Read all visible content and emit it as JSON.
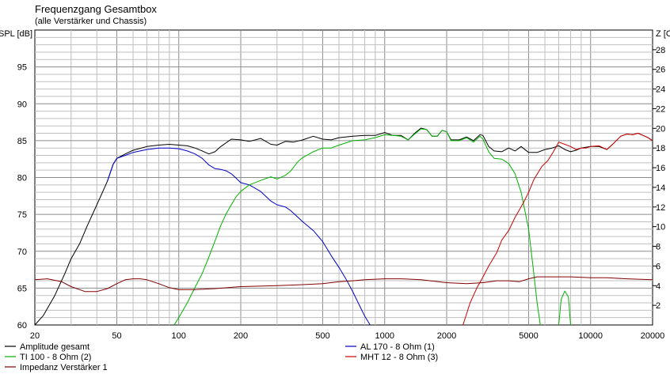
{
  "chart_data": {
    "type": "line",
    "title": "Frequenzgang Gesamtbox",
    "subtitle": "(alle Verstärker und Chassis)",
    "ylabel": "SPL [dB]",
    "y2label": "Z [Ohm]",
    "x_scale": "log",
    "xlim": [
      20,
      20000
    ],
    "ylim": [
      60,
      100
    ],
    "y2lim": [
      0,
      30
    ],
    "grid": true,
    "x_ticks": [
      {
        "v": 20,
        "label": "20"
      },
      {
        "v": 50,
        "label": "50"
      },
      {
        "v": 100,
        "label": "100"
      },
      {
        "v": 200,
        "label": "200"
      },
      {
        "v": 500,
        "label": "500"
      },
      {
        "v": 1000,
        "label": "1000"
      },
      {
        "v": 2000,
        "label": "2000"
      },
      {
        "v": 5000,
        "label": "5000"
      },
      {
        "v": 10000,
        "label": "10000"
      },
      {
        "v": 20000,
        "label": "20000"
      }
    ],
    "y_ticks": [
      {
        "v": 60,
        "label": "60"
      },
      {
        "v": 65,
        "label": "65"
      },
      {
        "v": 70,
        "label": "70"
      },
      {
        "v": 75,
        "label": "75"
      },
      {
        "v": 80,
        "label": "80"
      },
      {
        "v": 85,
        "label": "85"
      },
      {
        "v": 90,
        "label": "90"
      },
      {
        "v": 95,
        "label": "95"
      }
    ],
    "y2_ticks": [
      {
        "v": 2,
        "label": "2"
      },
      {
        "v": 4,
        "label": "4"
      },
      {
        "v": 6,
        "label": "6"
      },
      {
        "v": 8,
        "label": "8"
      },
      {
        "v": 10,
        "label": "10"
      },
      {
        "v": 12,
        "label": "12"
      },
      {
        "v": 14,
        "label": "14"
      },
      {
        "v": 16,
        "label": "16"
      },
      {
        "v": 18,
        "label": "18"
      },
      {
        "v": 20,
        "label": "20"
      },
      {
        "v": 22,
        "label": "22"
      },
      {
        "v": 24,
        "label": "24"
      },
      {
        "v": 26,
        "label": "26"
      },
      {
        "v": 28,
        "label": "28"
      }
    ],
    "legend_position": "bottom",
    "series": [
      {
        "name": "Amplitude gesamt",
        "color": "#000000",
        "axis": "spl",
        "points": [
          [
            20,
            60
          ],
          [
            22,
            61.3
          ],
          [
            25,
            64
          ],
          [
            28,
            67
          ],
          [
            30,
            69
          ],
          [
            33,
            71
          ],
          [
            36,
            73.5
          ],
          [
            40,
            76.3
          ],
          [
            45,
            79.5
          ],
          [
            48,
            81.8
          ],
          [
            50,
            82.6
          ],
          [
            55,
            83.2
          ],
          [
            60,
            83.7
          ],
          [
            70,
            84.2
          ],
          [
            80,
            84.4
          ],
          [
            90,
            84.5
          ],
          [
            100,
            84.4
          ],
          [
            110,
            84.3
          ],
          [
            120,
            84
          ],
          [
            130,
            83.6
          ],
          [
            140,
            83.2
          ],
          [
            150,
            83.5
          ],
          [
            160,
            84.2
          ],
          [
            180,
            85.2
          ],
          [
            200,
            85.1
          ],
          [
            220,
            84.9
          ],
          [
            250,
            85.3
          ],
          [
            280,
            84.5
          ],
          [
            300,
            84.4
          ],
          [
            330,
            84.9
          ],
          [
            360,
            84.8
          ],
          [
            400,
            85.1
          ],
          [
            450,
            85.6
          ],
          [
            500,
            85.2
          ],
          [
            550,
            85.1
          ],
          [
            600,
            85.4
          ],
          [
            700,
            85.6
          ],
          [
            800,
            85.7
          ],
          [
            900,
            85.7
          ],
          [
            1000,
            86.1
          ],
          [
            1100,
            85.7
          ],
          [
            1200,
            85.7
          ],
          [
            1300,
            85.1
          ],
          [
            1400,
            86
          ],
          [
            1500,
            86.7
          ],
          [
            1600,
            86.5
          ],
          [
            1700,
            85.6
          ],
          [
            1800,
            85.6
          ],
          [
            1900,
            86.4
          ],
          [
            2000,
            86.2
          ],
          [
            2100,
            85.1
          ],
          [
            2300,
            85.1
          ],
          [
            2500,
            85.5
          ],
          [
            2700,
            85
          ],
          [
            2900,
            85.8
          ],
          [
            3000,
            85.7
          ],
          [
            3200,
            84.2
          ],
          [
            3400,
            83.6
          ],
          [
            3700,
            83.5
          ],
          [
            4000,
            84
          ],
          [
            4300,
            83.6
          ],
          [
            4600,
            84.2
          ],
          [
            5000,
            83.4
          ],
          [
            5500,
            83.4
          ],
          [
            6000,
            83.8
          ],
          [
            6500,
            84
          ],
          [
            7000,
            84.3
          ],
          [
            7500,
            83.8
          ],
          [
            8000,
            83.5
          ],
          [
            8500,
            83.7
          ],
          [
            9000,
            84
          ],
          [
            10000,
            84.2
          ],
          [
            11000,
            84.2
          ],
          [
            12000,
            83.8
          ],
          [
            13000,
            84.7
          ],
          [
            14000,
            85.6
          ],
          [
            15000,
            85.9
          ],
          [
            16000,
            85.8
          ],
          [
            17000,
            86
          ],
          [
            18000,
            85.7
          ],
          [
            19000,
            85.4
          ],
          [
            20000,
            85
          ]
        ]
      },
      {
        "name": "AL 170 - 8 Ohm (1)",
        "color": "#0000cc",
        "axis": "spl",
        "points": [
          [
            45,
            79.5
          ],
          [
            48,
            81.8
          ],
          [
            50,
            82.6
          ],
          [
            55,
            83
          ],
          [
            60,
            83.4
          ],
          [
            70,
            83.8
          ],
          [
            80,
            84
          ],
          [
            90,
            84
          ],
          [
            100,
            83.9
          ],
          [
            110,
            83.6
          ],
          [
            120,
            83.2
          ],
          [
            130,
            82.6
          ],
          [
            140,
            81.7
          ],
          [
            150,
            81.2
          ],
          [
            160,
            81.1
          ],
          [
            170,
            80.9
          ],
          [
            180,
            80.5
          ],
          [
            190,
            79.9
          ],
          [
            200,
            79.3
          ],
          [
            220,
            79
          ],
          [
            250,
            78.1
          ],
          [
            280,
            76.8
          ],
          [
            300,
            76.3
          ],
          [
            330,
            76
          ],
          [
            350,
            75.5
          ],
          [
            400,
            74
          ],
          [
            450,
            72.8
          ],
          [
            500,
            71.3
          ],
          [
            550,
            69.4
          ],
          [
            600,
            67.8
          ],
          [
            650,
            66.2
          ],
          [
            700,
            64.5
          ],
          [
            750,
            62.8
          ],
          [
            800,
            61.2
          ],
          [
            850,
            60
          ]
        ]
      },
      {
        "name": "TI 100 - 8 Ohm (2)",
        "color": "#00b400",
        "axis": "spl",
        "points": [
          [
            95,
            60
          ],
          [
            100,
            61
          ],
          [
            110,
            63
          ],
          [
            120,
            65.1
          ],
          [
            130,
            67
          ],
          [
            140,
            69.2
          ],
          [
            150,
            71.4
          ],
          [
            160,
            73.5
          ],
          [
            170,
            75.1
          ],
          [
            180,
            76.3
          ],
          [
            190,
            77.4
          ],
          [
            200,
            78.1
          ],
          [
            220,
            79
          ],
          [
            250,
            79.6
          ],
          [
            280,
            80.1
          ],
          [
            300,
            79.8
          ],
          [
            330,
            80.3
          ],
          [
            350,
            80.9
          ],
          [
            380,
            82.2
          ],
          [
            400,
            82.7
          ],
          [
            450,
            83.5
          ],
          [
            500,
            84
          ],
          [
            550,
            84
          ],
          [
            600,
            84.4
          ],
          [
            700,
            85
          ],
          [
            800,
            85.1
          ],
          [
            900,
            85.4
          ],
          [
            1000,
            85.8
          ],
          [
            1100,
            85.7
          ],
          [
            1200,
            85.6
          ],
          [
            1300,
            85.1
          ],
          [
            1400,
            85.9
          ],
          [
            1500,
            86.6
          ],
          [
            1600,
            86.5
          ],
          [
            1700,
            85.6
          ],
          [
            1800,
            85.6
          ],
          [
            1900,
            86.4
          ],
          [
            2000,
            86.2
          ],
          [
            2100,
            85
          ],
          [
            2300,
            85
          ],
          [
            2500,
            85.4
          ],
          [
            2700,
            84.8
          ],
          [
            2900,
            85.6
          ],
          [
            3000,
            85.2
          ],
          [
            3200,
            83.5
          ],
          [
            3400,
            82.6
          ],
          [
            3700,
            82.5
          ],
          [
            4000,
            81.9
          ],
          [
            4300,
            80.5
          ],
          [
            4600,
            78
          ],
          [
            5000,
            73
          ],
          [
            5300,
            67
          ],
          [
            5500,
            63
          ],
          [
            5700,
            60
          ]
        ]
      },
      {
        "name": "TI 100 - 8 Ohm (2)",
        "color": "#00b400",
        "axis": "spl",
        "points": [
          [
            7000,
            60
          ],
          [
            7200,
            63.5
          ],
          [
            7500,
            64.6
          ],
          [
            7800,
            63.8
          ],
          [
            8000,
            60
          ]
        ]
      },
      {
        "name": "MHT 12 - 8 Ohm (3)",
        "color": "#cc0000",
        "axis": "spl",
        "points": [
          [
            2400,
            60
          ],
          [
            2600,
            63
          ],
          [
            2800,
            65
          ],
          [
            3000,
            66.5
          ],
          [
            3200,
            68
          ],
          [
            3500,
            69.8
          ],
          [
            3700,
            71.5
          ],
          [
            4000,
            72.8
          ],
          [
            4300,
            74.6
          ],
          [
            4700,
            76.5
          ],
          [
            5000,
            78
          ],
          [
            5300,
            79.7
          ],
          [
            5800,
            81.5
          ],
          [
            6200,
            82.3
          ],
          [
            6600,
            83.5
          ],
          [
            7000,
            84.8
          ],
          [
            7500,
            84.5
          ],
          [
            8000,
            84.2
          ],
          [
            8500,
            83.8
          ],
          [
            9000,
            84
          ],
          [
            9500,
            84
          ],
          [
            10000,
            84.2
          ],
          [
            11000,
            84.3
          ],
          [
            12000,
            83.8
          ],
          [
            13000,
            84.7
          ],
          [
            14000,
            85.6
          ],
          [
            15000,
            85.9
          ],
          [
            16000,
            85.8
          ],
          [
            17000,
            86
          ],
          [
            18000,
            85.7
          ],
          [
            19000,
            85.4
          ],
          [
            20000,
            85
          ]
        ]
      },
      {
        "name": "Impedanz Verstärker 1",
        "color": "#800000",
        "axis": "impedance",
        "points": [
          [
            20,
            4.6
          ],
          [
            23,
            4.7
          ],
          [
            27,
            4.4
          ],
          [
            30,
            3.9
          ],
          [
            35,
            3.4
          ],
          [
            40,
            3.4
          ],
          [
            45,
            3.7
          ],
          [
            50,
            4.2
          ],
          [
            55,
            4.6
          ],
          [
            60,
            4.7
          ],
          [
            65,
            4.7
          ],
          [
            70,
            4.6
          ],
          [
            80,
            4.2
          ],
          [
            90,
            3.8
          ],
          [
            100,
            3.6
          ],
          [
            120,
            3.6
          ],
          [
            150,
            3.7
          ],
          [
            200,
            3.9
          ],
          [
            300,
            4
          ],
          [
            400,
            4.1
          ],
          [
            500,
            4.2
          ],
          [
            600,
            4.4
          ],
          [
            700,
            4.5
          ],
          [
            800,
            4.6
          ],
          [
            1000,
            4.7
          ],
          [
            1200,
            4.7
          ],
          [
            1500,
            4.6
          ],
          [
            2000,
            4.3
          ],
          [
            2500,
            4.2
          ],
          [
            3000,
            4.3
          ],
          [
            3500,
            4.5
          ],
          [
            4000,
            4.5
          ],
          [
            4500,
            4.4
          ],
          [
            5000,
            4.7
          ],
          [
            5500,
            4.9
          ],
          [
            6000,
            4.9
          ],
          [
            7000,
            4.9
          ],
          [
            8000,
            4.9
          ],
          [
            10000,
            4.8
          ],
          [
            12000,
            4.8
          ],
          [
            15000,
            4.7
          ],
          [
            20000,
            4.6
          ]
        ]
      }
    ]
  },
  "legend": [
    {
      "label": "Amplitude gesamt",
      "color": "#000000"
    },
    {
      "label": "TI 100 - 8 Ohm (2)",
      "color": "#00b400"
    },
    {
      "label": "Impedanz Verstärker 1",
      "color": "#800000"
    },
    {
      "label": "AL 170 - 8 Ohm (1)",
      "color": "#0000cc"
    },
    {
      "label": "MHT 12 - 8 Ohm (3)",
      "color": "#cc0000"
    }
  ]
}
